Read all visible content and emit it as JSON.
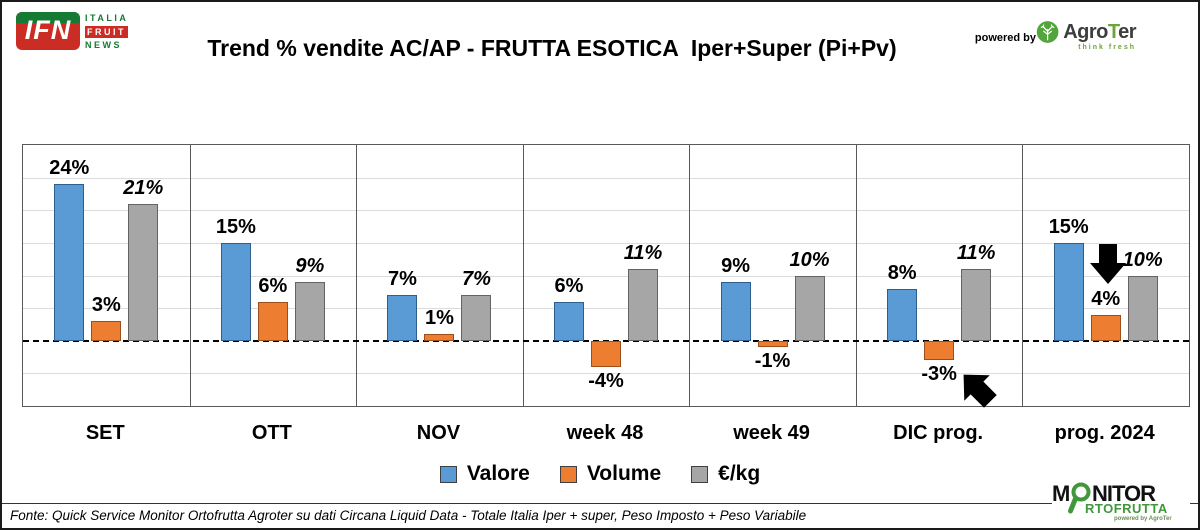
{
  "header": {
    "ifn_logo": {
      "short": "IFN",
      "line1": "ITALIA",
      "line2": "FRUIT",
      "line3": "NEWS"
    },
    "powered_by": "powered by",
    "agroter": {
      "name_pre": "Agro",
      "name_t": "T",
      "name_post": "er",
      "tagline": "think fresh"
    }
  },
  "colors": {
    "ifn_green": "#157A33",
    "ifn_red": "#CB2C24",
    "agroter_green": "#6CA437",
    "monitor_green": "#41973B"
  },
  "chart_data": {
    "type": "bar",
    "title": "Trend % vendite AC/AP - FRUTTA ESOTICA  Iper+Super (Pi+Pv)",
    "categories": [
      "SET",
      "OTT",
      "NOV",
      "week 48",
      "week 49",
      "DIC prog.",
      "prog. 2024"
    ],
    "series": [
      {
        "name": "Valore",
        "color": "#5B9BD5",
        "border": "#2E5E8C",
        "label_italic": false,
        "values": [
          24,
          15,
          7,
          6,
          9,
          8,
          15
        ]
      },
      {
        "name": "Volume",
        "color": "#ED7D31",
        "border": "#9C4F1B",
        "label_italic": false,
        "values": [
          3,
          6,
          1,
          -4,
          -1,
          -3,
          4
        ]
      },
      {
        "name": "€/kg",
        "color": "#A6A6A6",
        "border": "#636363",
        "label_italic": true,
        "values": [
          21,
          9,
          7,
          11,
          10,
          11,
          10
        ]
      }
    ],
    "ylim": [
      -10,
      30
    ],
    "grid_step": 5,
    "zero_line": "dashed",
    "grid": true,
    "legend_position": "bottom",
    "value_label_format": "{v}%",
    "annotations": [
      {
        "name": "decline-arrow-prog-2024",
        "shape": "arrow-down",
        "target": "prog. 2024 / Volume 4%"
      },
      {
        "name": "pointer-arrow-dic-prog",
        "shape": "arrow-up-left",
        "target": "DIC prog. / Volume -3%"
      }
    ]
  },
  "footer": {
    "fonte": "Fonte: Quick Service Monitor Ortofrutta Agroter su dati Circana Liquid Data - Totale Italia Iper + super, Peso Imposto + Peso Variabile",
    "monitor_logo": {
      "m": "M",
      "nitor": "NITOR",
      "line2": "RTOFRUTTA",
      "powered": "powered by AgroTer"
    }
  }
}
